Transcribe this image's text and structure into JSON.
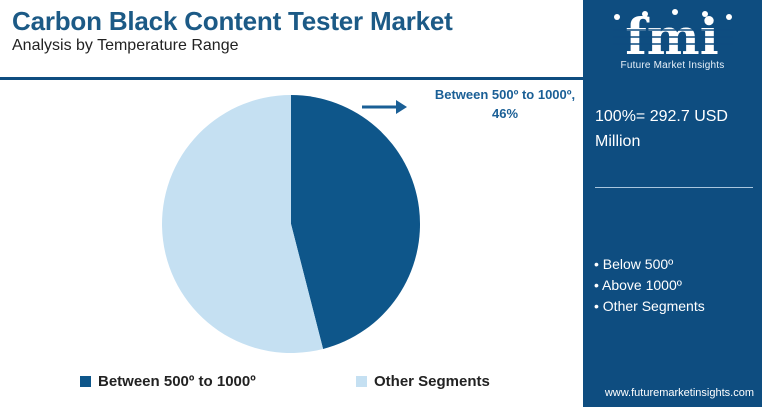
{
  "header": {
    "title": "Carbon Black Content Tester Market",
    "subtitle": "Analysis by Temperature Range"
  },
  "chart_data": {
    "type": "pie",
    "slices": [
      {
        "label": "Between 500º to 1000º",
        "value": 46,
        "color": "#0e568a"
      },
      {
        "label": "Other Segments",
        "value": 54,
        "color": "#c5e0f2"
      }
    ],
    "callout": "Between 500º to 1000º, 46%",
    "legend_position": "bottom"
  },
  "legend": {
    "items": [
      "Between 500º to 1000º",
      "Other Segments"
    ]
  },
  "panel": {
    "logo_letters": "fmi",
    "logo_name": "Future Market Insights",
    "total": "100%= 292.7 USD Million",
    "segments": [
      "• Below 500º",
      "• Above 1000º",
      "• Other Segments"
    ],
    "website": "www.futuremarketinsights.com"
  },
  "colors": {
    "brand_navy": "#0e4d80",
    "title_blue": "#1c5a86",
    "slice_dark": "#0e568a",
    "slice_light": "#c5e0f2"
  }
}
